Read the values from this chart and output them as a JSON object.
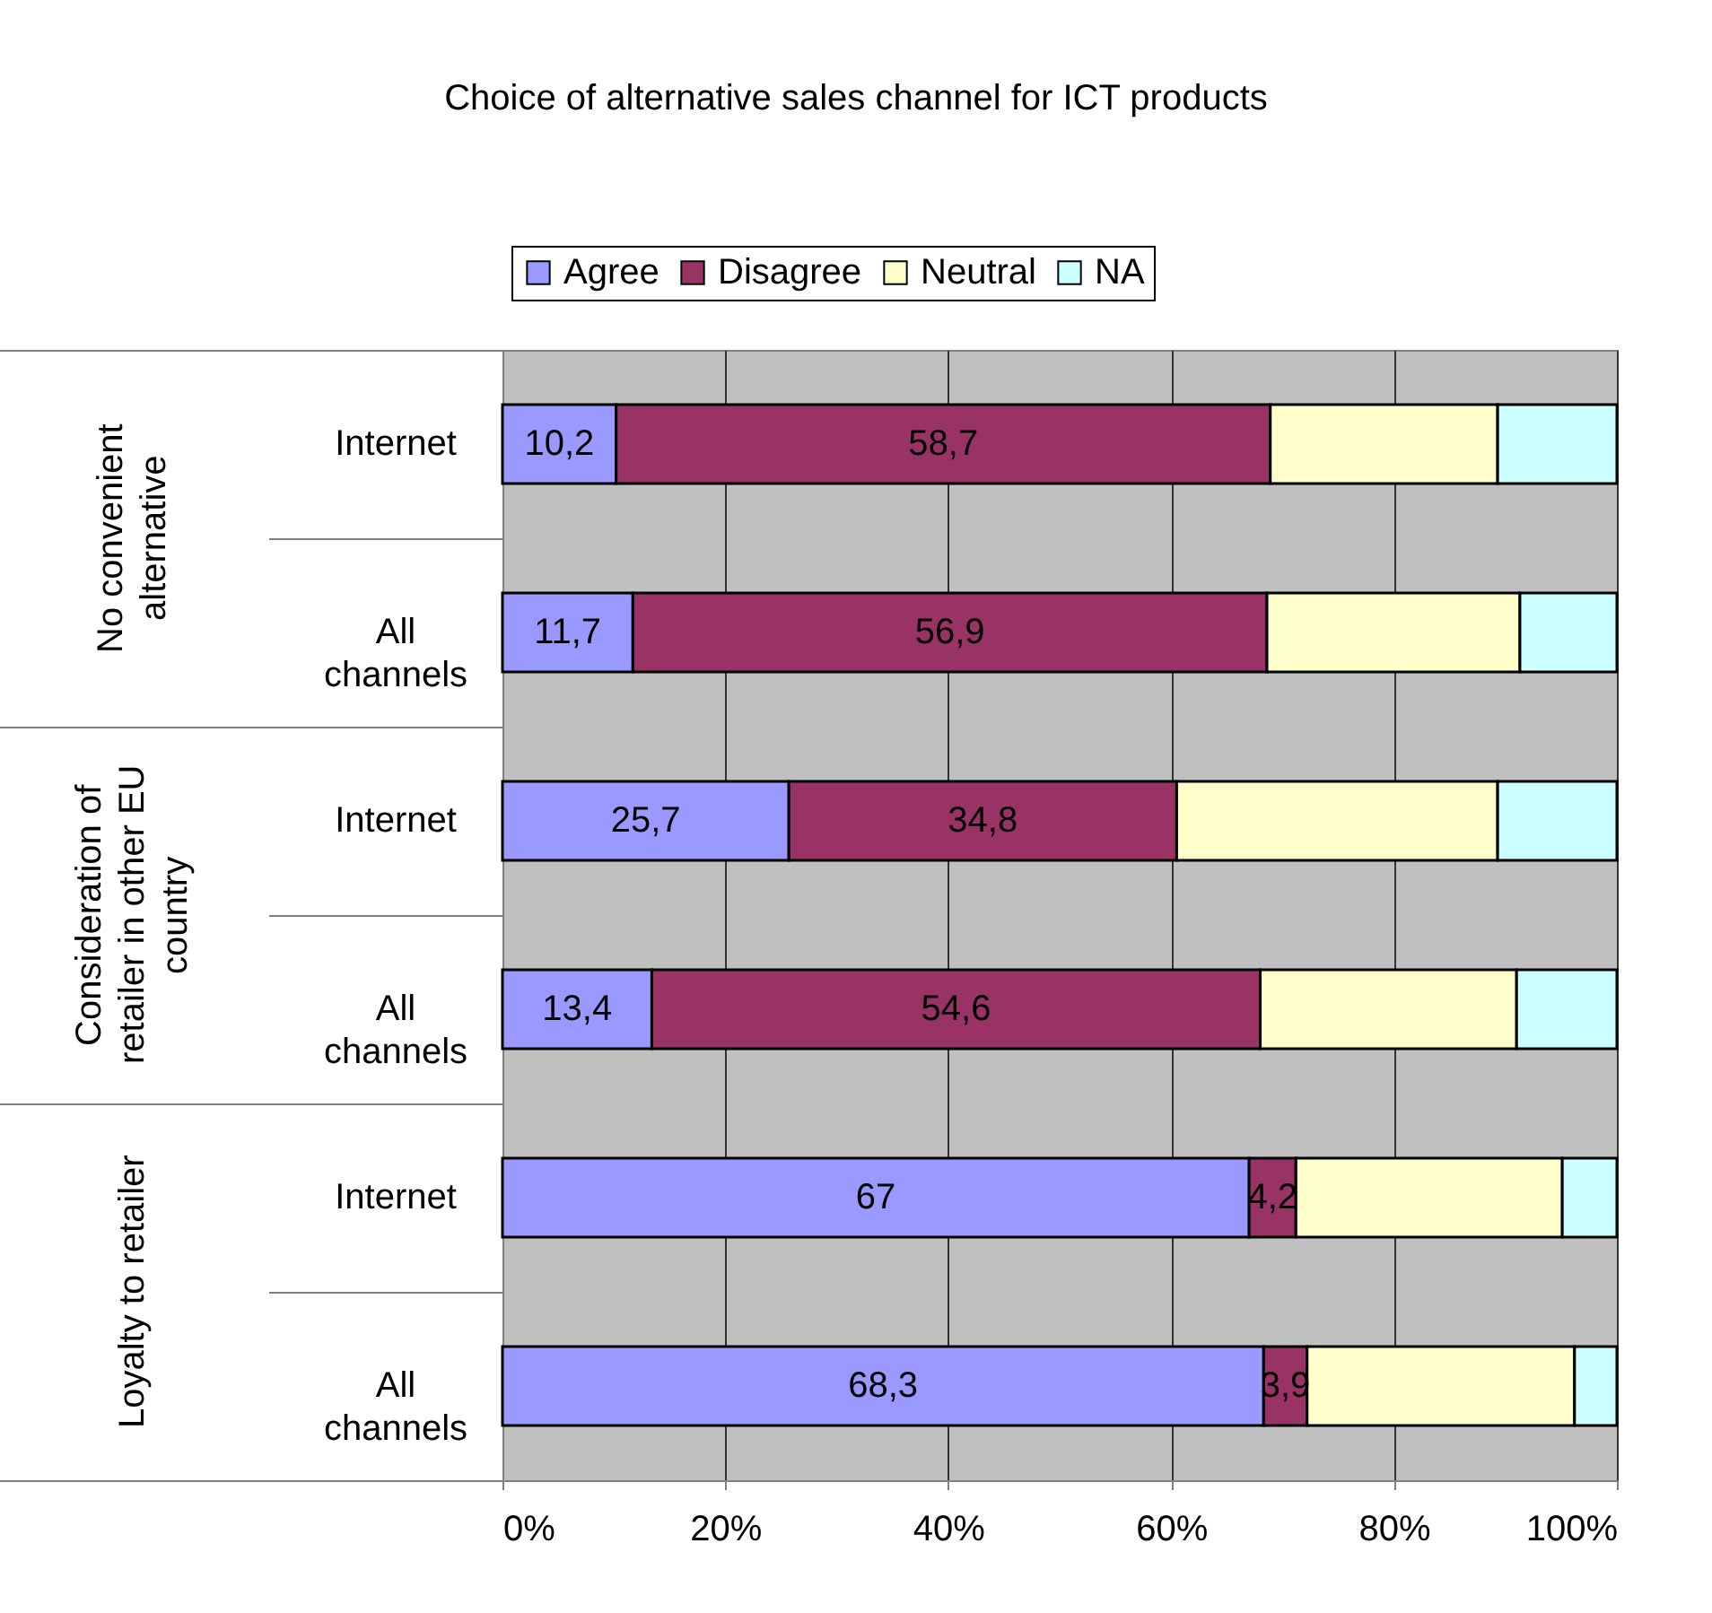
{
  "chart_data": {
    "type": "bar",
    "orientation": "horizontal",
    "stacked": true,
    "title": "Choice of alternative sales channel for ICT products",
    "categories": [
      "Internet",
      "All channels",
      "Internet",
      "All channels",
      "Internet",
      "All channels"
    ],
    "annotations": [
      "No convenient alternative",
      "Consideration of retailer in other EU country",
      "Loyalty to retailer"
    ],
    "series": [
      {
        "name": "Agree",
        "color": "#9999ff",
        "values": [
          10.2,
          11.7,
          25.7,
          13.4,
          67,
          68.3
        ],
        "value_labels": [
          "10,2",
          "11,7",
          "25,7",
          "13,4",
          "67",
          "68,3"
        ]
      },
      {
        "name": "Disagree",
        "color": "#993366",
        "values": [
          58.7,
          56.9,
          34.8,
          54.6,
          4.2,
          3.9
        ],
        "value_labels": [
          "58,7",
          "56,9",
          "34,8",
          "54,6",
          "4,2",
          "3,9"
        ]
      },
      {
        "name": "Neutral",
        "color": "#ffffcc",
        "values": [
          20.4,
          22.7,
          28.8,
          23.0,
          23.9,
          24.0
        ]
      },
      {
        "name": "NA",
        "color": "#ccffff",
        "values": [
          10.7,
          8.7,
          10.7,
          9.0,
          4.9,
          3.8
        ]
      }
    ],
    "xlim": [
      0,
      100
    ],
    "xticks": [
      {
        "value": 0,
        "label": "0%"
      },
      {
        "value": 20,
        "label": "20%"
      },
      {
        "value": 40,
        "label": "40%"
      },
      {
        "value": 60,
        "label": "60%"
      },
      {
        "value": 80,
        "label": "80%"
      },
      {
        "value": 100,
        "label": "100%"
      }
    ],
    "grid": "x",
    "legend": "top"
  }
}
